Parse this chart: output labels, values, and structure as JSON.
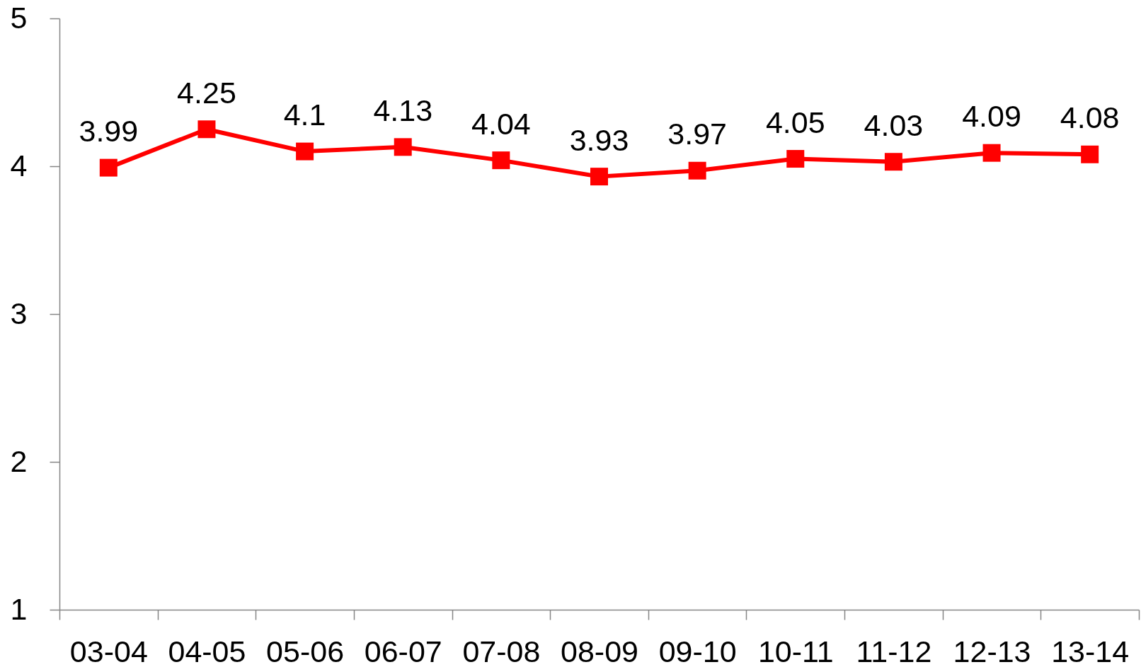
{
  "chart_data": {
    "type": "line",
    "categories": [
      "03-04",
      "04-05",
      "05-06",
      "06-07",
      "07-08",
      "08-09",
      "09-10",
      "10-11",
      "11-12",
      "12-13",
      "13-14"
    ],
    "series": [
      {
        "color": "#ff0000",
        "values": [
          3.99,
          4.25,
          4.1,
          4.13,
          4.04,
          3.93,
          3.97,
          4.05,
          4.03,
          4.09,
          4.08
        ]
      }
    ],
    "ylim": [
      1,
      5
    ],
    "yticks": [
      1,
      2,
      3,
      4,
      5
    ],
    "marker": "square",
    "data_labels": true,
    "grid": false,
    "legend": false
  }
}
